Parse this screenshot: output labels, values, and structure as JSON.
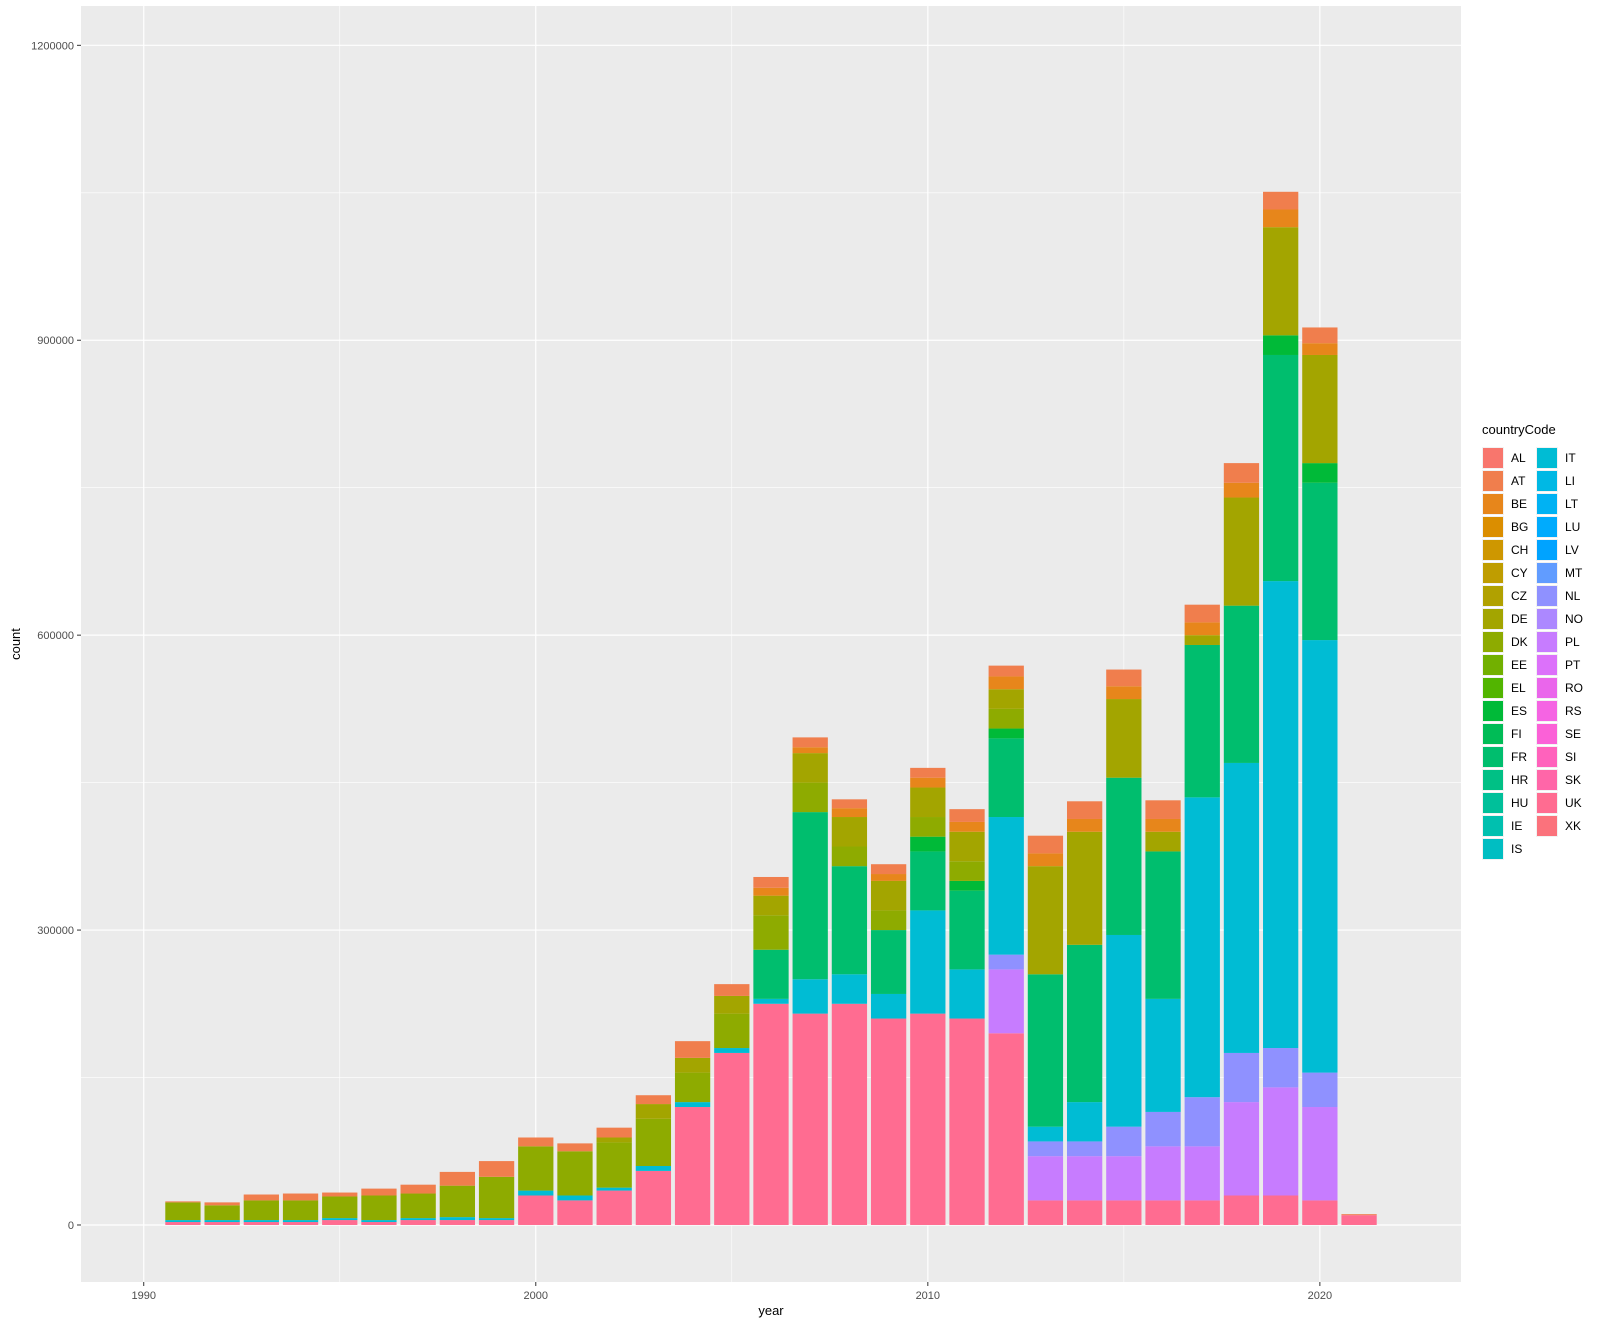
{
  "chart_data": {
    "type": "bar",
    "stacked": true,
    "xlabel": "year",
    "ylabel": "count",
    "xlim": [
      1988.4,
      2023.6
    ],
    "ylim": [
      -58000,
      1240000
    ],
    "x_ticks": [
      1990,
      2000,
      2010,
      2020
    ],
    "x_tick_labels": [
      "1990",
      "2000",
      "2010",
      "2020"
    ],
    "y_ticks": [
      0,
      300000,
      600000,
      900000,
      1200000
    ],
    "y_tick_labels": [
      "0",
      "300000",
      "600000",
      "900000",
      "1200000"
    ],
    "grid": true,
    "legend": {
      "title": "countryCode",
      "position": "right"
    },
    "years": [
      1991,
      1992,
      1993,
      1994,
      1995,
      1996,
      1997,
      1998,
      1999,
      2000,
      2001,
      2002,
      2003,
      2004,
      2005,
      2006,
      2007,
      2008,
      2009,
      2010,
      2011,
      2012,
      2013,
      2014,
      2015,
      2016,
      2017,
      2018,
      2019,
      2020,
      2021
    ],
    "series": [
      {
        "name": "AL",
        "color": "#F8766D",
        "values": [
          0,
          0,
          0,
          0,
          0,
          0,
          0,
          0,
          0,
          0,
          0,
          0,
          0,
          0,
          0,
          0,
          0,
          0,
          0,
          0,
          0,
          0,
          0,
          0,
          0,
          0,
          0,
          0,
          0,
          0,
          0
        ]
      },
      {
        "name": "AT",
        "color": "#F07E4D",
        "values": [
          1000,
          3000,
          6000,
          7000,
          4000,
          7000,
          9000,
          14000,
          16000,
          9000,
          8000,
          10000,
          9000,
          17000,
          12000,
          11000,
          10000,
          9000,
          10000,
          10000,
          13000,
          11000,
          18000,
          18000,
          17000,
          19000,
          18000,
          20000,
          18000,
          16000,
          1000
        ]
      },
      {
        "name": "BE",
        "color": "#E7861B",
        "values": [
          0,
          0,
          0,
          0,
          0,
          0,
          0,
          0,
          0,
          0,
          0,
          0,
          0,
          0,
          0,
          8000,
          6000,
          9000,
          7000,
          10000,
          10000,
          13000,
          13000,
          13000,
          13000,
          13000,
          13000,
          15000,
          18000,
          12000,
          0
        ]
      },
      {
        "name": "BG",
        "color": "#DB8E00",
        "values": [
          0,
          0,
          0,
          0,
          0,
          0,
          0,
          0,
          0,
          0,
          0,
          0,
          0,
          0,
          0,
          0,
          0,
          0,
          0,
          0,
          0,
          0,
          0,
          0,
          0,
          0,
          0,
          0,
          0,
          0,
          0
        ]
      },
      {
        "name": "CH",
        "color": "#CE9700",
        "values": [
          0,
          0,
          0,
          0,
          0,
          0,
          0,
          0,
          0,
          0,
          0,
          0,
          0,
          0,
          0,
          0,
          0,
          0,
          0,
          0,
          0,
          0,
          0,
          0,
          0,
          0,
          0,
          0,
          0,
          0,
          0
        ]
      },
      {
        "name": "CY",
        "color": "#BF9D00",
        "values": [
          0,
          0,
          0,
          0,
          0,
          0,
          0,
          0,
          0,
          0,
          0,
          0,
          0,
          0,
          0,
          0,
          0,
          0,
          0,
          0,
          0,
          0,
          0,
          0,
          0,
          0,
          0,
          0,
          0,
          0,
          0
        ]
      },
      {
        "name": "CZ",
        "color": "#B1A100",
        "values": [
          0,
          0,
          0,
          0,
          0,
          0,
          0,
          0,
          0,
          0,
          0,
          0,
          0,
          0,
          0,
          0,
          0,
          0,
          0,
          0,
          0,
          0,
          0,
          0,
          0,
          0,
          0,
          0,
          0,
          0,
          0
        ]
      },
      {
        "name": "DE",
        "color": "#A3A500",
        "values": [
          0,
          0,
          0,
          0,
          0,
          0,
          0,
          0,
          0,
          0,
          0,
          5000,
          15000,
          15000,
          18000,
          20000,
          30000,
          30000,
          30000,
          30000,
          30000,
          20000,
          110000,
          115000,
          80000,
          20000,
          10000,
          110000,
          110000,
          110000,
          0
        ]
      },
      {
        "name": "DK",
        "color": "#8EAB00",
        "values": [
          18000,
          15000,
          20000,
          20000,
          22000,
          25000,
          25000,
          32000,
          42000,
          45000,
          45000,
          46000,
          48000,
          30000,
          35000,
          35000,
          30000,
          20000,
          20000,
          20000,
          20000,
          20000,
          0,
          0,
          0,
          0,
          0,
          0,
          0,
          0,
          0
        ]
      },
      {
        "name": "EE",
        "color": "#72B000",
        "values": [
          0,
          0,
          0,
          0,
          0,
          0,
          0,
          0,
          0,
          0,
          0,
          0,
          0,
          0,
          0,
          0,
          0,
          0,
          0,
          0,
          0,
          0,
          0,
          0,
          0,
          0,
          0,
          0,
          0,
          0,
          0
        ]
      },
      {
        "name": "EL",
        "color": "#52B500",
        "values": [
          0,
          0,
          0,
          0,
          0,
          0,
          0,
          0,
          0,
          0,
          0,
          0,
          0,
          0,
          0,
          0,
          0,
          0,
          0,
          0,
          0,
          0,
          0,
          0,
          0,
          0,
          0,
          0,
          0,
          0,
          0
        ]
      },
      {
        "name": "ES",
        "color": "#00BA38",
        "values": [
          0,
          0,
          0,
          0,
          0,
          0,
          0,
          0,
          0,
          0,
          0,
          0,
          0,
          0,
          0,
          0,
          0,
          0,
          0,
          15000,
          10000,
          10000,
          0,
          0,
          0,
          0,
          0,
          0,
          20000,
          20000,
          0
        ]
      },
      {
        "name": "FI",
        "color": "#00BC56",
        "values": [
          0,
          0,
          0,
          0,
          0,
          0,
          0,
          0,
          0,
          0,
          0,
          0,
          0,
          0,
          0,
          0,
          0,
          0,
          0,
          0,
          0,
          0,
          0,
          0,
          0,
          0,
          0,
          0,
          0,
          0,
          0
        ]
      },
      {
        "name": "FR",
        "color": "#00BE6E",
        "values": [
          0,
          0,
          0,
          0,
          0,
          0,
          0,
          0,
          0,
          0,
          0,
          0,
          0,
          0,
          0,
          50000,
          170000,
          110000,
          65000,
          60000,
          80000,
          80000,
          155000,
          160000,
          160000,
          150000,
          155000,
          160000,
          230000,
          160000,
          0
        ]
      },
      {
        "name": "HR",
        "color": "#00C085",
        "values": [
          0,
          0,
          0,
          0,
          0,
          0,
          0,
          0,
          0,
          0,
          0,
          0,
          0,
          0,
          0,
          0,
          0,
          0,
          0,
          0,
          0,
          0,
          0,
          0,
          0,
          0,
          0,
          0,
          0,
          0,
          0
        ]
      },
      {
        "name": "HU",
        "color": "#00C09A",
        "values": [
          0,
          0,
          0,
          0,
          0,
          0,
          0,
          0,
          0,
          0,
          0,
          0,
          0,
          0,
          0,
          0,
          0,
          0,
          0,
          0,
          0,
          0,
          0,
          0,
          0,
          0,
          0,
          0,
          0,
          0,
          0
        ]
      },
      {
        "name": "IE",
        "color": "#00C0AF",
        "values": [
          0,
          0,
          0,
          0,
          0,
          0,
          0,
          0,
          0,
          0,
          0,
          0,
          0,
          0,
          0,
          0,
          0,
          0,
          0,
          0,
          0,
          0,
          0,
          0,
          0,
          0,
          0,
          0,
          0,
          0,
          0
        ]
      },
      {
        "name": "IS",
        "color": "#00BEC2",
        "values": [
          0,
          0,
          0,
          0,
          0,
          0,
          0,
          0,
          0,
          0,
          0,
          0,
          0,
          0,
          0,
          0,
          0,
          0,
          0,
          0,
          0,
          0,
          0,
          0,
          0,
          0,
          0,
          0,
          0,
          0,
          0
        ]
      },
      {
        "name": "IT",
        "color": "#00BCD4",
        "values": [
          2000,
          2000,
          2000,
          2000,
          2000,
          2000,
          2000,
          3000,
          2000,
          5000,
          5000,
          3000,
          5000,
          5000,
          5000,
          5000,
          35000,
          30000,
          25000,
          105000,
          50000,
          140000,
          15000,
          40000,
          195000,
          115000,
          305000,
          295000,
          475000,
          440000,
          0
        ]
      },
      {
        "name": "LI",
        "color": "#00B8E4",
        "values": [
          0,
          0,
          0,
          0,
          0,
          0,
          0,
          0,
          0,
          0,
          0,
          0,
          0,
          0,
          0,
          0,
          0,
          0,
          0,
          0,
          0,
          0,
          0,
          0,
          0,
          0,
          0,
          0,
          0,
          0,
          0
        ]
      },
      {
        "name": "LT",
        "color": "#00B2F3",
        "values": [
          0,
          0,
          0,
          0,
          0,
          0,
          0,
          0,
          0,
          0,
          0,
          0,
          0,
          0,
          0,
          0,
          0,
          0,
          0,
          0,
          0,
          0,
          0,
          0,
          0,
          0,
          0,
          0,
          0,
          0,
          0
        ]
      },
      {
        "name": "LU",
        "color": "#00ABFD",
        "values": [
          0,
          0,
          0,
          0,
          0,
          0,
          0,
          0,
          0,
          0,
          0,
          0,
          0,
          0,
          0,
          0,
          0,
          0,
          0,
          0,
          0,
          0,
          0,
          0,
          0,
          0,
          0,
          0,
          0,
          0,
          0
        ]
      },
      {
        "name": "LV",
        "color": "#00A3FF",
        "values": [
          0,
          0,
          0,
          0,
          0,
          0,
          0,
          0,
          0,
          0,
          0,
          0,
          0,
          0,
          0,
          0,
          0,
          0,
          0,
          0,
          0,
          0,
          0,
          0,
          0,
          0,
          0,
          0,
          0,
          0,
          0
        ]
      },
      {
        "name": "MT",
        "color": "#619CFF",
        "values": [
          0,
          0,
          0,
          0,
          0,
          0,
          0,
          0,
          0,
          0,
          0,
          0,
          0,
          0,
          0,
          0,
          0,
          0,
          0,
          0,
          0,
          0,
          0,
          0,
          0,
          0,
          0,
          0,
          0,
          0,
          0
        ]
      },
      {
        "name": "NL",
        "color": "#8F91FF",
        "values": [
          0,
          0,
          0,
          0,
          0,
          0,
          0,
          0,
          0,
          0,
          0,
          0,
          0,
          0,
          0,
          0,
          0,
          0,
          0,
          0,
          0,
          15000,
          15000,
          15000,
          30000,
          35000,
          50000,
          50000,
          40000,
          35000,
          0
        ]
      },
      {
        "name": "NO",
        "color": "#AC88FF",
        "values": [
          0,
          0,
          0,
          0,
          0,
          0,
          0,
          0,
          0,
          0,
          0,
          0,
          0,
          0,
          0,
          0,
          0,
          0,
          0,
          0,
          0,
          0,
          0,
          0,
          0,
          0,
          0,
          0,
          0,
          0,
          0
        ]
      },
      {
        "name": "PL",
        "color": "#C77CFF",
        "values": [
          0,
          0,
          0,
          0,
          0,
          0,
          0,
          0,
          0,
          0,
          0,
          0,
          0,
          0,
          0,
          0,
          0,
          0,
          0,
          0,
          0,
          65000,
          45000,
          45000,
          45000,
          55000,
          55000,
          95000,
          110000,
          95000,
          0
        ]
      },
      {
        "name": "PT",
        "color": "#DC71FA",
        "values": [
          0,
          0,
          0,
          0,
          0,
          0,
          0,
          0,
          0,
          0,
          0,
          0,
          0,
          0,
          0,
          0,
          0,
          0,
          0,
          0,
          0,
          0,
          0,
          0,
          0,
          0,
          0,
          0,
          0,
          0,
          0
        ]
      },
      {
        "name": "RO",
        "color": "#EA66EB",
        "values": [
          0,
          0,
          0,
          0,
          0,
          0,
          0,
          0,
          0,
          0,
          0,
          0,
          0,
          0,
          0,
          0,
          0,
          0,
          0,
          0,
          0,
          0,
          0,
          0,
          0,
          0,
          0,
          0,
          0,
          0,
          0
        ]
      },
      {
        "name": "RS",
        "color": "#F564E3",
        "values": [
          0,
          0,
          0,
          0,
          0,
          0,
          0,
          0,
          0,
          0,
          0,
          0,
          0,
          0,
          0,
          0,
          0,
          0,
          0,
          0,
          0,
          0,
          0,
          0,
          0,
          0,
          0,
          0,
          0,
          0,
          0
        ]
      },
      {
        "name": "SE",
        "color": "#FB61D7",
        "values": [
          0,
          0,
          0,
          0,
          0,
          0,
          0,
          0,
          0,
          0,
          0,
          0,
          0,
          0,
          0,
          0,
          0,
          0,
          0,
          0,
          0,
          0,
          0,
          0,
          0,
          0,
          0,
          0,
          0,
          0,
          0
        ]
      },
      {
        "name": "SI",
        "color": "#FF62BC",
        "values": [
          0,
          0,
          0,
          0,
          0,
          0,
          0,
          0,
          0,
          0,
          0,
          0,
          0,
          0,
          0,
          0,
          0,
          0,
          0,
          0,
          0,
          0,
          0,
          0,
          0,
          0,
          0,
          0,
          0,
          0,
          0
        ]
      },
      {
        "name": "SK",
        "color": "#FF66A8",
        "values": [
          0,
          0,
          0,
          0,
          0,
          0,
          0,
          0,
          0,
          0,
          0,
          0,
          0,
          0,
          0,
          0,
          0,
          0,
          0,
          0,
          0,
          0,
          0,
          0,
          0,
          0,
          0,
          0,
          0,
          0,
          0
        ]
      },
      {
        "name": "UK",
        "color": "#FF6C91",
        "values": [
          3000,
          3000,
          3000,
          3000,
          5000,
          3000,
          5000,
          5000,
          5000,
          30000,
          25000,
          35000,
          55000,
          120000,
          175000,
          225000,
          215000,
          225000,
          210000,
          215000,
          210000,
          195000,
          25000,
          25000,
          25000,
          25000,
          25000,
          30000,
          30000,
          25000,
          10000
        ]
      },
      {
        "name": "XK",
        "color": "#FB727C",
        "values": [
          0,
          0,
          0,
          0,
          0,
          0,
          0,
          0,
          0,
          0,
          0,
          0,
          0,
          0,
          0,
          0,
          0,
          0,
          0,
          0,
          0,
          0,
          0,
          0,
          0,
          0,
          0,
          0,
          0,
          0,
          0
        ]
      }
    ]
  }
}
